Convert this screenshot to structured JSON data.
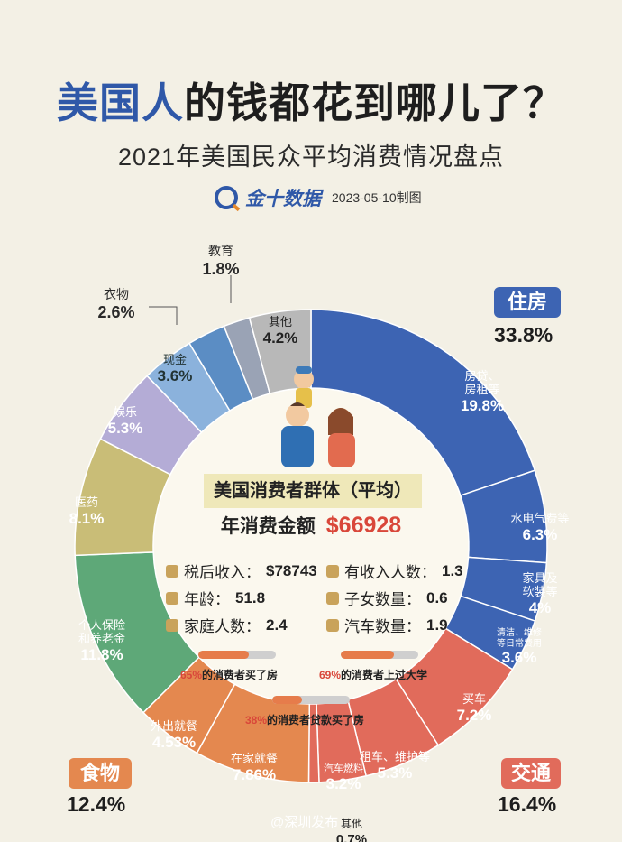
{
  "header": {
    "title_highlight": "美国人",
    "title_rest": "的钱都花到哪儿了？",
    "subtitle": "2021年美国民众平均消费情况盘点",
    "brand_name": "金十数据",
    "date": "2023-05-10制图"
  },
  "center": {
    "group_title": "美国消费者群体（平均）",
    "spend_label": "年消费金额",
    "spend_value": "$66928",
    "stats": [
      {
        "label": "税后收入：",
        "value": "$78743"
      },
      {
        "label": "有收入人数：",
        "value": "1.3"
      },
      {
        "label": "年龄：",
        "value": "51.8"
      },
      {
        "label": "子女数量：",
        "value": "0.6"
      },
      {
        "label": "家庭人数：",
        "value": "2.4"
      },
      {
        "label": "汽车数量：",
        "value": "1.9"
      }
    ],
    "bars": [
      {
        "pct_text": "65%",
        "rest": "的消费者买了房",
        "value": 0.65
      },
      {
        "pct_text": "69%",
        "rest": "的消费者上过大学",
        "value": 0.69
      },
      {
        "pct_text": "38%",
        "rest": "的消费者贷款买了房",
        "value": 0.38
      }
    ]
  },
  "categories": {
    "housing": {
      "label": "住房",
      "pct": "33.8%",
      "color": "#3d64b3"
    },
    "transport": {
      "label": "交通",
      "pct": "16.4%",
      "color": "#e16b5b"
    },
    "food": {
      "label": "食物",
      "pct": "12.4%",
      "color": "#e4884f"
    }
  },
  "colors": {
    "housing": "#3d64b3",
    "transport": "#e16b5b",
    "food": "#e4884f",
    "insurance": "#5ea878",
    "medical": "#c9bd77",
    "entertainment": "#b4acd6",
    "cash": "#8bb2dc",
    "clothing": "#5b8dc4",
    "education": "#9aa3b5",
    "other": "#b8b8b8"
  },
  "chart_data": {
    "type": "pie",
    "style": "donut",
    "slices": [
      {
        "name": "房贷、房租等",
        "value": 19.8,
        "category": "住房"
      },
      {
        "name": "水电气费等",
        "value": 6.3,
        "category": "住房"
      },
      {
        "name": "家具及软装等",
        "value": 4,
        "category": "住房"
      },
      {
        "name": "清洁、维修等日常费用",
        "value": 3.6,
        "category": "住房"
      },
      {
        "name": "买车",
        "value": 7.2,
        "category": "交通"
      },
      {
        "name": "租车、维护等",
        "value": 5.3,
        "category": "交通"
      },
      {
        "name": "汽车燃料",
        "value": 3.2,
        "category": "交通"
      },
      {
        "name": "其他",
        "value": 0.7,
        "category": "交通"
      },
      {
        "name": "在家就餐",
        "value": 7.86,
        "category": "食物"
      },
      {
        "name": "外出就餐",
        "value": 4.53,
        "category": "食物"
      },
      {
        "name": "个人保险和养老金",
        "value": 11.8
      },
      {
        "name": "医药",
        "value": 8.1
      },
      {
        "name": "娱乐",
        "value": 5.3
      },
      {
        "name": "现金",
        "value": 3.6
      },
      {
        "name": "衣物",
        "value": 2.6
      },
      {
        "name": "教育",
        "value": 1.8
      },
      {
        "name": "其他",
        "value": 4.2
      }
    ],
    "labels": {
      "s0n": "房贷、",
      "s0n2": "房租等",
      "s0p": "19.8%",
      "s1n": "水电气费等",
      "s1p": "6.3%",
      "s2n": "家具及",
      "s2n2": "软装等",
      "s2p": "4%",
      "s3n": "清洁、维修",
      "s3n2": "等日常费用",
      "s3p": "3.6%",
      "s4n": "买车",
      "s4p": "7.2%",
      "s5n": "租车、维护等",
      "s5p": "5.3%",
      "s6n": "汽车燃料",
      "s6p": "3.2%",
      "s7n": "其他",
      "s7p": "0.7%",
      "s8n": "在家就餐",
      "s8p": "7.86%",
      "s9n": "外出就餐",
      "s9p": "4.53%",
      "s10n": "个人保险",
      "s10n2": "和养老金",
      "s10p": "11.8%",
      "s11n": "医药",
      "s11p": "8.1%",
      "s12n": "娱乐",
      "s12p": "5.3%",
      "s13n": "现金",
      "s13p": "3.6%",
      "s14n": "衣物",
      "s14p": "2.6%",
      "s15n": "教育",
      "s15p": "1.8%",
      "s16n": "其他",
      "s16p": "4.2%"
    }
  },
  "watermark": "@深圳发布"
}
